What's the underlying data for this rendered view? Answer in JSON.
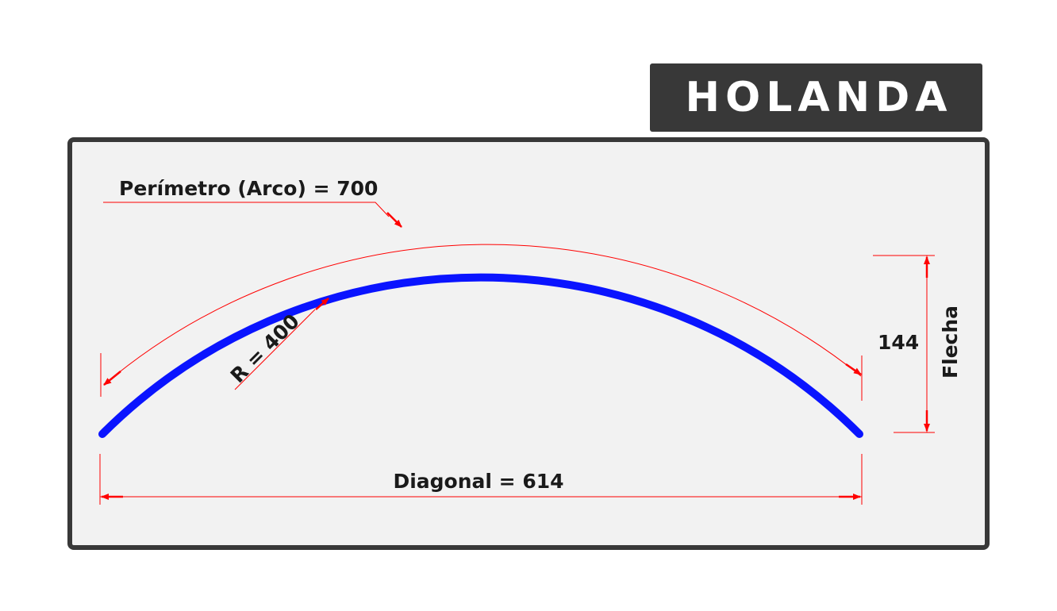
{
  "title": "HOLANDA",
  "labels": {
    "perimeter": "Perímetro (Arco) = 700",
    "radius": "R = 400",
    "sagitta_value": "144",
    "sagitta_name": "Flecha",
    "diagonal": "Diagonal = 614"
  },
  "colors": {
    "arc": "#0a14ff",
    "dimension": "#ff0000",
    "panel_border": "#383838",
    "panel_fill": "#f2f2f2",
    "title_fill": "#383838"
  }
}
